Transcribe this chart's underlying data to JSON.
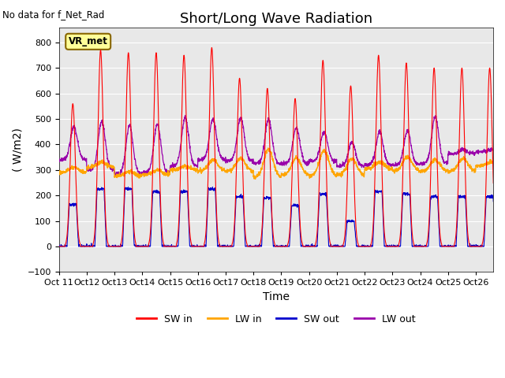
{
  "title": "Short/Long Wave Radiation",
  "top_left_text": "No data for f_Net_Rad",
  "ylabel": "( W/m2)",
  "xlabel": "Time",
  "ylim": [
    -100,
    860
  ],
  "yticks": [
    -100,
    0,
    100,
    200,
    300,
    400,
    500,
    600,
    700,
    800
  ],
  "xlim": [
    0,
    375
  ],
  "xtick_labels": [
    "Oct 11",
    "Oct 12",
    "Oct 13",
    "Oct 14",
    "Oct 15",
    "Oct 16",
    "Oct 17",
    "Oct 18",
    "Oct 19",
    "Oct 20",
    "Oct 21",
    "Oct 22",
    "Oct 23",
    "Oct 24",
    "Oct 25",
    "Oct 26"
  ],
  "xtick_positions": [
    0,
    24,
    48,
    72,
    96,
    120,
    144,
    168,
    192,
    216,
    240,
    264,
    288,
    312,
    336,
    360
  ],
  "legend_entries": [
    "SW in",
    "LW in",
    "SW out",
    "LW out"
  ],
  "legend_colors": [
    "#ff0000",
    "#ffa500",
    "#0000cd",
    "#9900aa"
  ],
  "vr_met_box_color": "#ffff99",
  "vr_met_border_color": "#886600",
  "background_color": "#ffffff",
  "plot_bg_color": "#e8e8e8",
  "grid_color": "#ffffff",
  "title_fontsize": 13,
  "axis_label_fontsize": 10,
  "tick_fontsize": 8,
  "hours_per_day": 24,
  "num_days": 16,
  "sw_in_peaks": [
    560,
    770,
    760,
    760,
    750,
    780,
    660,
    620,
    580,
    730,
    630,
    750,
    720,
    700,
    700,
    700
  ],
  "lw_in_base": [
    290,
    310,
    275,
    280,
    300,
    295,
    295,
    270,
    280,
    275,
    280,
    305,
    295,
    295,
    295,
    315
  ],
  "lw_in_peaks": [
    310,
    330,
    295,
    300,
    315,
    340,
    345,
    380,
    345,
    375,
    345,
    330,
    350,
    340,
    345,
    330
  ],
  "sw_out_peaks": [
    165,
    225,
    225,
    215,
    215,
    225,
    195,
    190,
    160,
    205,
    100,
    215,
    205,
    195,
    195,
    195
  ],
  "lw_out_base": [
    340,
    300,
    285,
    290,
    315,
    340,
    335,
    325,
    325,
    335,
    315,
    320,
    320,
    325,
    365,
    370
  ],
  "lw_out_peaks": [
    470,
    490,
    475,
    480,
    505,
    500,
    505,
    500,
    465,
    450,
    410,
    450,
    455,
    510,
    380,
    380
  ]
}
